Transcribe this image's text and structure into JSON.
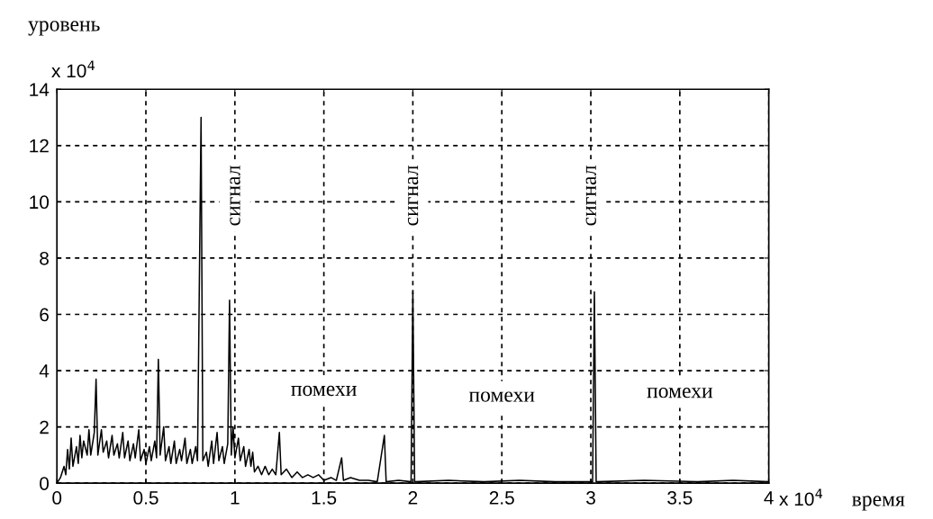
{
  "chart_data": {
    "type": "line",
    "xlabel": "время",
    "ylabel": "уровень",
    "x": [
      0,
      0.02,
      0.04,
      0.05,
      0.06,
      0.07,
      0.08,
      0.09,
      0.11,
      0.12,
      0.13,
      0.14,
      0.15,
      0.17,
      0.18,
      0.19,
      0.21,
      0.22,
      0.23,
      0.25,
      0.26,
      0.28,
      0.29,
      0.31,
      0.32,
      0.34,
      0.35,
      0.37,
      0.38,
      0.4,
      0.41,
      0.43,
      0.44,
      0.46,
      0.47,
      0.49,
      0.5,
      0.52,
      0.53,
      0.55,
      0.56,
      0.57,
      0.58,
      0.6,
      0.61,
      0.63,
      0.64,
      0.66,
      0.67,
      0.69,
      0.7,
      0.72,
      0.73,
      0.75,
      0.76,
      0.78,
      0.79,
      0.81,
      0.82,
      0.84,
      0.85,
      0.87,
      0.88,
      0.9,
      0.91,
      0.93,
      0.94,
      0.96,
      0.97,
      0.98,
      0.99,
      1.0,
      1.02,
      1.03,
      1.05,
      1.06,
      1.08,
      1.09,
      1.1,
      1.11,
      1.13,
      1.15,
      1.17,
      1.19,
      1.21,
      1.23,
      1.25,
      1.26,
      1.29,
      1.32,
      1.35,
      1.38,
      1.41,
      1.44,
      1.47,
      1.5,
      1.54,
      1.57,
      1.6,
      1.61,
      1.65,
      1.7,
      1.75,
      1.8,
      1.84,
      1.85,
      1.92,
      1.99,
      2.0,
      2.01,
      2.2,
      2.4,
      2.6,
      2.8,
      3.01,
      3.02,
      3.03,
      3.3,
      3.6,
      3.8,
      4.0
    ],
    "series": [
      {
        "color": "#000000",
        "values": [
          0,
          0.2,
          0.6,
          0.3,
          1.2,
          0.5,
          1.6,
          0.6,
          1.3,
          0.7,
          1.7,
          0.9,
          1.5,
          1.0,
          1.9,
          1.0,
          1.8,
          3.7,
          1.0,
          1.9,
          1.1,
          1.5,
          0.9,
          1.7,
          1.0,
          1.4,
          0.9,
          1.8,
          0.9,
          1.5,
          0.8,
          1.4,
          0.9,
          1.9,
          0.8,
          1.2,
          0.7,
          1.3,
          0.8,
          1.5,
          0.9,
          4.4,
          1.0,
          2.0,
          0.8,
          1.3,
          0.7,
          1.5,
          0.7,
          1.2,
          0.8,
          1.6,
          0.7,
          1.2,
          0.7,
          1.3,
          0.8,
          13.0,
          0.8,
          1.1,
          0.6,
          1.5,
          0.7,
          1.8,
          0.8,
          1.3,
          0.7,
          1.4,
          6.5,
          1.0,
          2.0,
          0.9,
          1.6,
          0.8,
          1.3,
          0.6,
          1.2,
          0.6,
          1.1,
          0.4,
          0.6,
          0.3,
          0.6,
          0.3,
          0.5,
          0.3,
          1.8,
          0.3,
          0.5,
          0.2,
          0.4,
          0.2,
          0.3,
          0.2,
          0.3,
          0.1,
          0.2,
          0.1,
          0.9,
          0.1,
          0.2,
          0.1,
          0.1,
          0.05,
          1.7,
          0.05,
          0.1,
          0.05,
          6.8,
          0.05,
          0.1,
          0.05,
          0.1,
          0.05,
          0.05,
          6.8,
          0.05,
          0.1,
          0.05,
          0.1,
          0.05
        ]
      }
    ],
    "xlim": [
      0,
      4
    ],
    "xticks": [
      0,
      0.5,
      1,
      1.5,
      2,
      2.5,
      3,
      3.5,
      4
    ],
    "ylim": [
      0,
      14
    ],
    "yticks": [
      0,
      2,
      4,
      6,
      8,
      10,
      12,
      14
    ],
    "grid": true,
    "line_style": "solid",
    "marker": "none",
    "annotations": [
      "сигнал",
      "сигнал",
      "сигнал",
      "помехи",
      "помехи",
      "помехи",
      "x 10$^{4}$",
      "x 10$^{4}$"
    ]
  }
}
